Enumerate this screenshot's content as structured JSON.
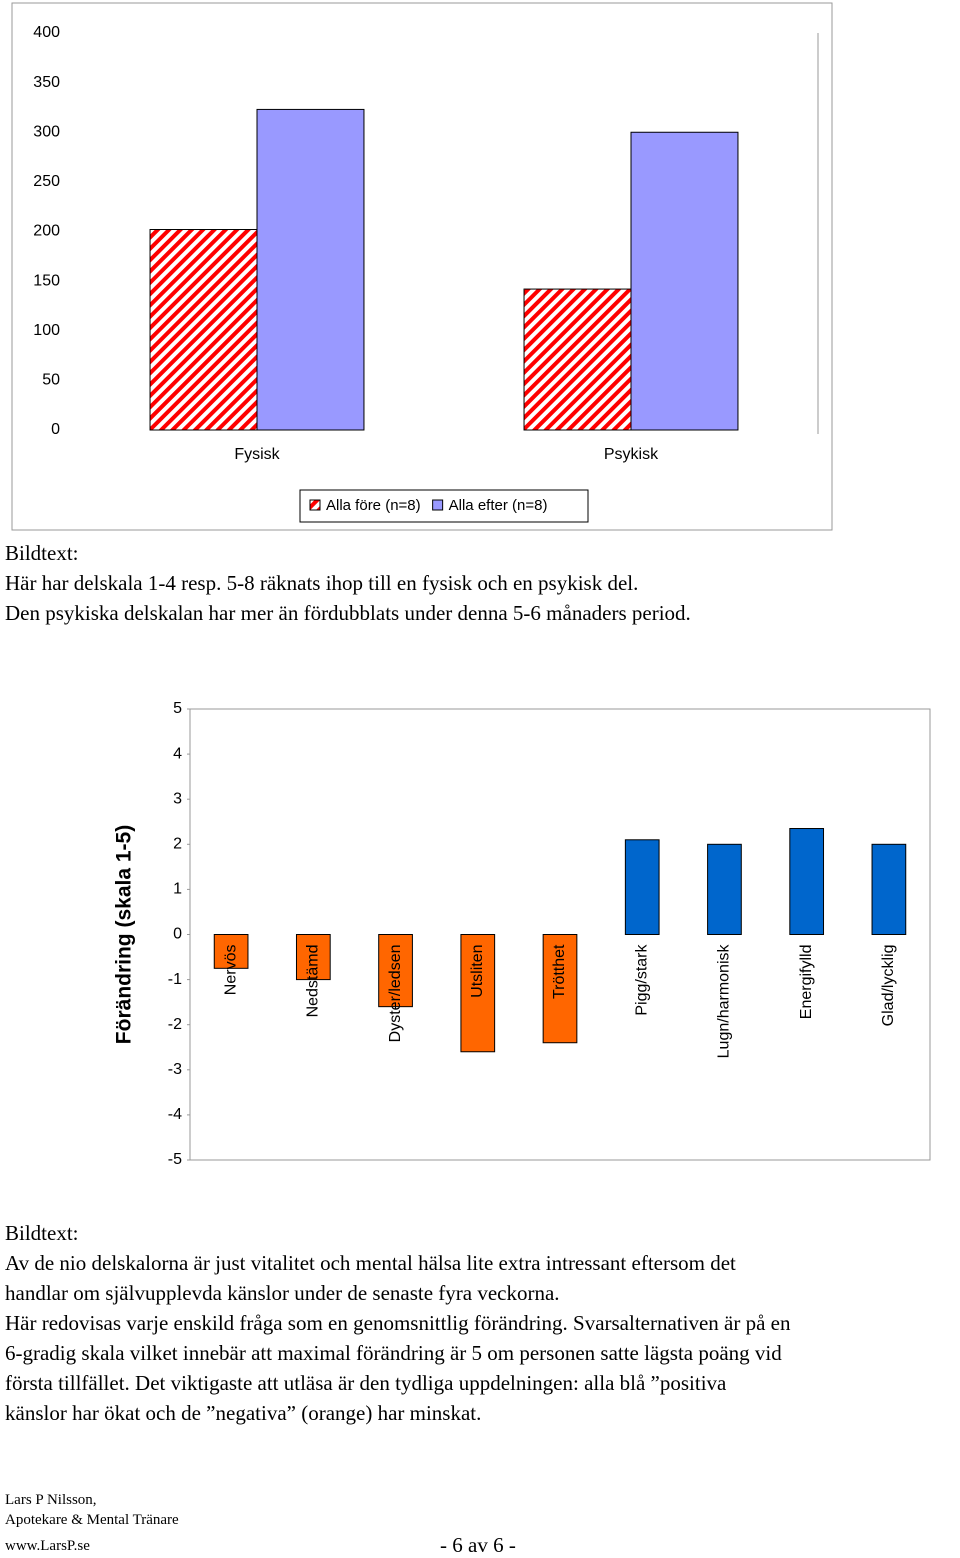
{
  "chart_data": [
    {
      "type": "bar",
      "categories": [
        "Fysisk",
        "Psykisk"
      ],
      "series": [
        {
          "name": "Alla före (n=8)",
          "color": "#ff0000",
          "hatch": true,
          "values": [
            202,
            142
          ]
        },
        {
          "name": "Alla efter (n=8)",
          "color": "#9999ff",
          "hatch": false,
          "values": [
            323,
            300
          ]
        }
      ],
      "ylim": [
        0,
        400
      ],
      "yticks": [
        0,
        50,
        100,
        150,
        200,
        250,
        300,
        350,
        400
      ],
      "legend": "bottom"
    },
    {
      "type": "bar",
      "y_label": "Förändring (skala 1-5)",
      "categories": [
        "Nervös",
        "Nedstämd",
        "Dyster/ledsen",
        "Utsliten",
        "Trötthet",
        "Pigg/stark",
        "Lugn/harmonisk",
        "Energifylld",
        "Glad/lycklig"
      ],
      "values": [
        -0.75,
        -1.0,
        -1.6,
        -2.6,
        -2.4,
        2.1,
        2.0,
        2.35,
        2.0
      ],
      "colors": [
        "#ff6600",
        "#ff6600",
        "#ff6600",
        "#ff6600",
        "#ff6600",
        "#0066cc",
        "#0066cc",
        "#0066cc",
        "#0066cc"
      ],
      "ylim": [
        -5,
        5
      ],
      "yticks": [
        5,
        4,
        3,
        2,
        1,
        0,
        -1,
        -2,
        -3,
        -4,
        -5
      ]
    }
  ],
  "caption1": {
    "label": "Bildtext:",
    "lines": [
      "Här har delskala 1-4 resp. 5-8 räknats ihop till en fysisk och en psykisk del.",
      "Den psykiska delskalan har mer än fördubblats under denna 5-6 månaders period."
    ]
  },
  "caption2": {
    "label": "Bildtext:",
    "lines": [
      "Av de nio delskalorna är just vitalitet och mental hälsa lite extra intressant eftersom det",
      "handlar om självupplevda känslor under de senaste fyra veckorna.",
      "Här redovisas varje enskild fråga som en genomsnittlig förändring. Svarsalternativen är på en",
      "6-gradig skala vilket innebär att maximal förändring är 5 om personen satte lägsta poäng vid",
      "första tillfället. Det viktigaste att utläsa är den tydliga uppdelningen: alla blå ”positiva",
      "känslor har ökat och de ”negativa” (orange) har minskat."
    ]
  },
  "footer": {
    "author": "Lars P Nilsson,",
    "role": "Apotekare & Mental Tränare",
    "site": "www.LarsP.se",
    "page": "- 6 av 6 -"
  }
}
